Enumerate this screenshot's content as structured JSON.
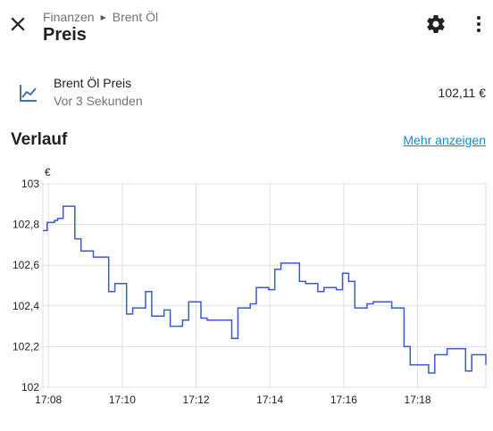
{
  "header": {
    "breadcrumb": [
      "Finanzen",
      "Brent Öl"
    ],
    "title": "Preis"
  },
  "entity": {
    "name": "Brent Öl Preis",
    "last_changed": "Vor 3 Sekunden",
    "value": "102,11 €"
  },
  "history": {
    "title": "Verlauf",
    "more_label": "Mehr anzeigen"
  },
  "colors": {
    "line": "#3b5bc6",
    "grid": "#e0e0e0",
    "link": "#0a8ccf",
    "icon": "#44739e"
  },
  "chart_data": {
    "type": "line",
    "step": true,
    "unit": "€",
    "ylim": [
      102,
      103
    ],
    "yticks": [
      "103",
      "102,8",
      "102,6",
      "102,4",
      "102,2",
      "102"
    ],
    "xticks": [
      "17:08",
      "17:10",
      "17:12",
      "17:14",
      "17:16",
      "17:18"
    ],
    "xlim_minutes": [
      17.85,
      19.85
    ],
    "series": [
      {
        "x": [
          "17:07:51",
          "17:07:58",
          "17:08:10",
          "17:08:15",
          "17:08:24",
          "17:08:34",
          "17:08:43",
          "17:08:53",
          "17:09:13",
          "17:09:38",
          "17:09:48",
          "17:10:07",
          "17:10:17",
          "17:10:38",
          "17:10:48",
          "17:11:08",
          "17:11:18",
          "17:11:38",
          "17:11:48",
          "17:12:08",
          "17:12:18",
          "17:12:28",
          "17:12:38",
          "17:12:58",
          "17:13:08",
          "17:13:28",
          "17:13:38",
          "17:13:58",
          "17:14:08",
          "17:14:18",
          "17:14:28",
          "17:14:48",
          "17:14:58",
          "17:15:08",
          "17:15:18",
          "17:15:28",
          "17:15:48",
          "17:15:58",
          "17:16:08",
          "17:16:18",
          "17:16:28",
          "17:16:38",
          "17:16:48",
          "17:16:58",
          "17:17:18",
          "17:17:38",
          "17:17:48",
          "17:17:58",
          "17:18:18",
          "17:18:28",
          "17:18:48",
          "17:19:08",
          "17:19:18",
          "17:19:28",
          "17:19:47",
          "17:19:51"
        ],
        "y": [
          102.77,
          102.81,
          102.82,
          102.83,
          102.89,
          102.89,
          102.73,
          102.67,
          102.64,
          102.47,
          102.51,
          102.36,
          102.39,
          102.47,
          102.35,
          102.38,
          102.3,
          102.33,
          102.42,
          102.34,
          102.33,
          102.33,
          102.33,
          102.24,
          102.39,
          102.41,
          102.49,
          102.48,
          102.58,
          102.61,
          102.61,
          102.52,
          102.51,
          102.51,
          102.47,
          102.49,
          102.48,
          102.56,
          102.52,
          102.39,
          102.39,
          102.41,
          102.42,
          102.42,
          102.39,
          102.2,
          102.11,
          102.11,
          102.07,
          102.16,
          102.19,
          102.19,
          102.08,
          102.16,
          102.16,
          102.11
        ]
      }
    ]
  }
}
